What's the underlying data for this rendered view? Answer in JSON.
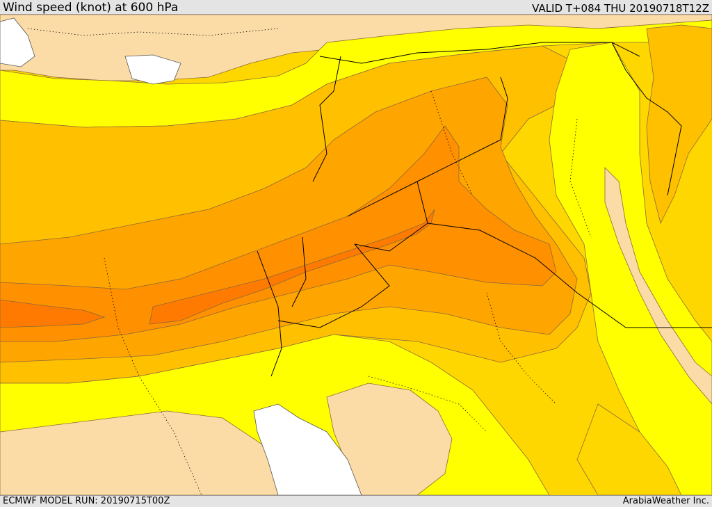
{
  "header": {
    "title": "Wind speed (knot) at 600 hPa",
    "valid": "VALID T+084 THU  20190718T12Z"
  },
  "footer": {
    "model_run": "ECMWF MODEL RUN: 20190715T00Z",
    "credit": "ArabiaWeather Inc."
  },
  "colors": {
    "land_white": "#ffffff",
    "band_light": "#fcdca6",
    "band_yellow": "#ffff00",
    "band_gold": "#ffd700",
    "band_amber": "#ffc000",
    "band_orange_light": "#ffa500",
    "band_orange": "#ff9000",
    "band_orange_dark": "#ff7a00",
    "contour_line": "#8a6a3a",
    "border_line": "#000000"
  }
}
